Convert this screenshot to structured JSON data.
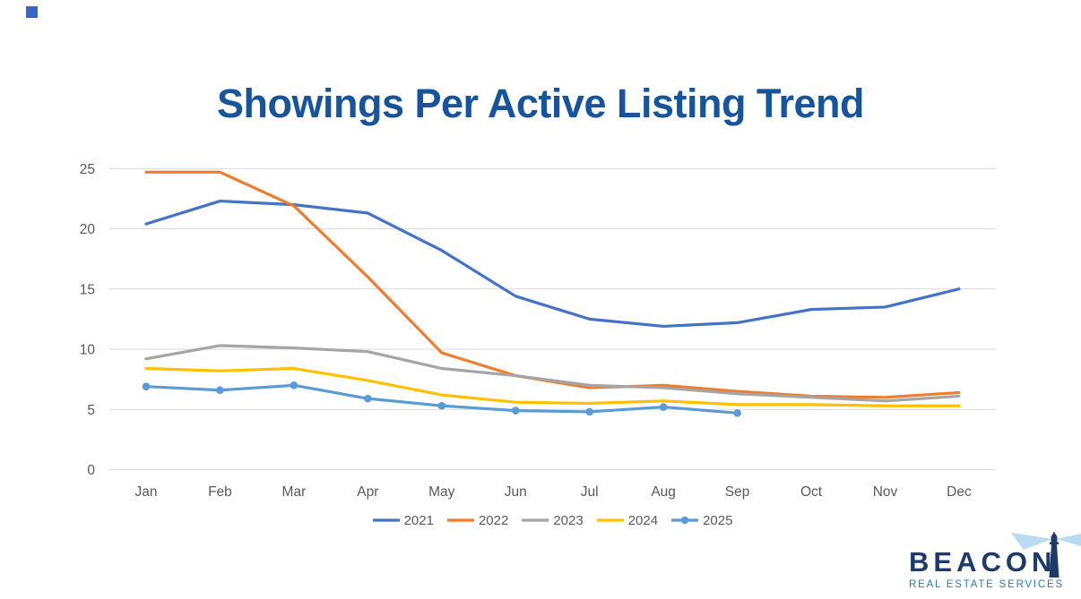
{
  "title": "Showings Per Active Listing Trend",
  "decor": {
    "corner_square_color": "#3C64C8"
  },
  "chart_data": {
    "type": "line",
    "title": "Showings Per Active Listing Trend",
    "categories": [
      "Jan",
      "Feb",
      "Mar",
      "Apr",
      "May",
      "Jun",
      "Jul",
      "Aug",
      "Sep",
      "Oct",
      "Nov",
      "Dec"
    ],
    "series": [
      {
        "name": "2021",
        "color": "#4472C4",
        "marker": false,
        "values": [
          20.4,
          22.3,
          22.0,
          21.3,
          18.2,
          14.4,
          12.5,
          11.9,
          12.2,
          13.3,
          13.5,
          15.0
        ]
      },
      {
        "name": "2022",
        "color": "#ED7D31",
        "marker": false,
        "values": [
          24.7,
          24.7,
          21.9,
          16.0,
          9.7,
          7.8,
          6.8,
          7.0,
          6.5,
          6.1,
          6.0,
          6.4
        ]
      },
      {
        "name": "2023",
        "color": "#A5A5A5",
        "marker": false,
        "values": [
          9.2,
          10.3,
          10.1,
          9.8,
          8.4,
          7.8,
          7.0,
          6.8,
          6.3,
          6.0,
          5.7,
          6.1
        ]
      },
      {
        "name": "2024",
        "color": "#FFC000",
        "marker": false,
        "values": [
          8.4,
          8.2,
          8.4,
          7.4,
          6.2,
          5.6,
          5.5,
          5.7,
          5.4,
          5.4,
          5.3,
          5.3
        ]
      },
      {
        "name": "2025",
        "color": "#5B9BD5",
        "marker": true,
        "values": [
          6.9,
          6.6,
          7.0,
          5.9,
          5.3,
          4.9,
          4.8,
          5.2,
          4.7
        ]
      }
    ],
    "xlabel": "",
    "ylabel": "",
    "yticks": [
      0,
      5,
      10,
      15,
      20,
      25
    ],
    "ylim": [
      0,
      25
    ],
    "grid": true,
    "gridline_color": "#D9D9D9",
    "axis_text_color": "#595959",
    "legend_position": "bottom"
  },
  "logo": {
    "name": "BEACON",
    "tagline": "REAL ESTATE SERVICES",
    "colors": {
      "navy": "#1E3A68",
      "blue": "#2E75B6",
      "beam": "#7FBDE4",
      "beam_light": "#BBDCF2"
    }
  }
}
